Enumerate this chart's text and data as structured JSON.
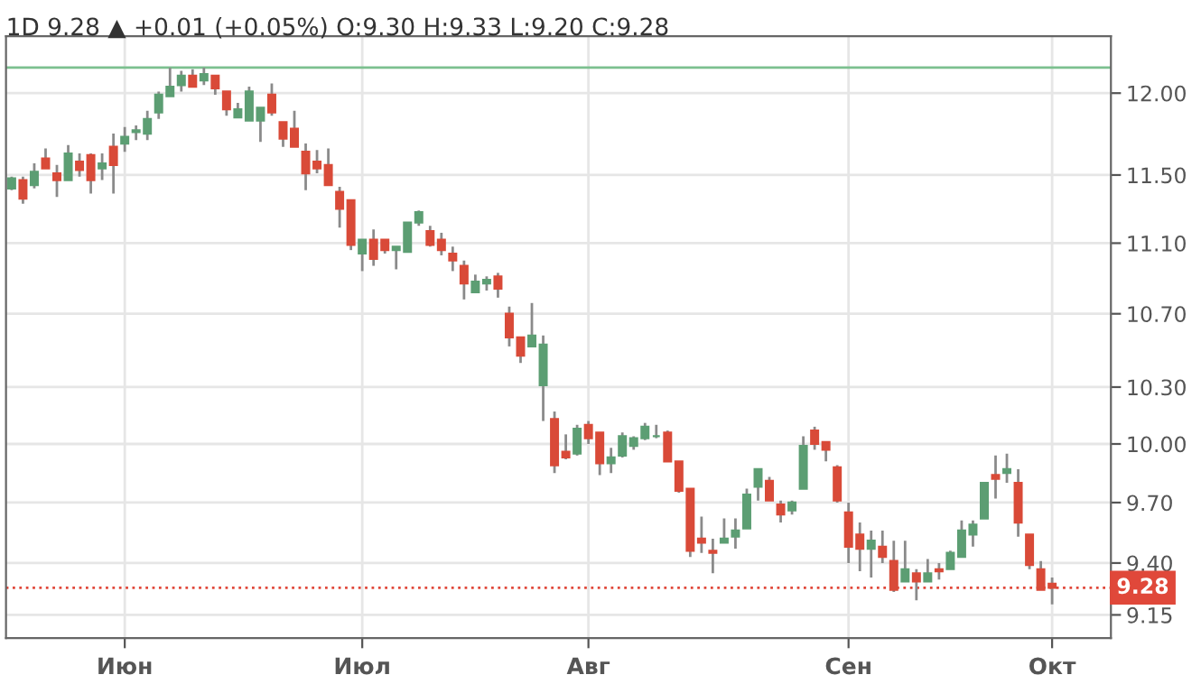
{
  "chart_data": {
    "type": "candlestick",
    "title": "1D 9.28 ▲ +0.01 (+0.05%) O:9.30 H:9.33 L:9.20 C:9.28",
    "categories": [
      null,
      null,
      null,
      null,
      null,
      null,
      null,
      null,
      null,
      null,
      "Июн",
      null,
      null,
      null,
      null,
      null,
      null,
      null,
      null,
      null,
      null,
      null,
      null,
      null,
      null,
      null,
      null,
      null,
      null,
      null,
      null,
      "Июл",
      null,
      null,
      null,
      null,
      null,
      null,
      null,
      null,
      null,
      null,
      null,
      null,
      null,
      null,
      null,
      null,
      null,
      null,
      null,
      "Авг",
      null,
      null,
      null,
      null,
      null,
      null,
      null,
      null,
      null,
      null,
      null,
      null,
      null,
      null,
      null,
      null,
      null,
      null,
      null,
      null,
      null,
      null,
      "Сен",
      null,
      null,
      null,
      null,
      null,
      null,
      null,
      null,
      null,
      null,
      null,
      null,
      null,
      null,
      null,
      null,
      null,
      "Окт"
    ],
    "ohlc": [
      [
        11.42,
        11.49,
        11.41,
        11.48
      ],
      [
        11.47,
        11.49,
        11.33,
        11.36
      ],
      [
        11.44,
        11.57,
        11.42,
        11.52
      ],
      [
        11.6,
        11.66,
        11.54,
        11.54
      ],
      [
        11.51,
        11.56,
        11.37,
        11.47
      ],
      [
        11.47,
        11.68,
        11.47,
        11.63
      ],
      [
        11.58,
        11.63,
        11.49,
        11.53
      ],
      [
        11.62,
        11.63,
        11.39,
        11.47
      ],
      [
        11.54,
        11.63,
        11.47,
        11.57
      ],
      [
        11.67,
        11.75,
        11.39,
        11.56
      ],
      [
        11.69,
        11.79,
        11.64,
        11.73
      ],
      [
        11.76,
        11.8,
        11.71,
        11.77
      ],
      [
        11.75,
        11.89,
        11.71,
        11.84
      ],
      [
        11.88,
        12.01,
        11.84,
        11.99
      ],
      [
        11.98,
        12.16,
        11.98,
        12.04
      ],
      [
        12.05,
        12.14,
        12.01,
        12.11
      ],
      [
        12.11,
        12.15,
        12.04,
        12.04
      ],
      [
        12.08,
        12.16,
        12.05,
        12.12
      ],
      [
        12.11,
        12.11,
        11.99,
        12.03
      ],
      [
        12.01,
        12.01,
        11.86,
        11.9
      ],
      [
        11.85,
        11.94,
        11.85,
        11.9
      ],
      [
        11.83,
        12.04,
        11.83,
        12.01
      ],
      [
        11.83,
        11.91,
        11.7,
        11.91
      ],
      [
        11.99,
        12.06,
        11.86,
        11.88
      ],
      [
        11.82,
        11.82,
        11.67,
        11.72
      ],
      [
        11.78,
        11.89,
        11.67,
        11.67
      ],
      [
        11.64,
        11.69,
        11.41,
        11.51
      ],
      [
        11.58,
        11.65,
        11.51,
        11.54
      ],
      [
        11.56,
        11.66,
        11.44,
        11.44
      ],
      [
        11.4,
        11.43,
        11.19,
        11.3
      ],
      [
        11.35,
        11.35,
        11.06,
        11.09
      ],
      [
        11.04,
        11.12,
        10.94,
        11.12
      ],
      [
        11.12,
        11.18,
        10.97,
        11.01
      ],
      [
        11.12,
        11.12,
        11.04,
        11.06
      ],
      [
        11.06,
        11.08,
        10.95,
        11.08
      ],
      [
        11.05,
        11.22,
        11.05,
        11.22
      ],
      [
        11.22,
        11.29,
        11.2,
        11.28
      ],
      [
        11.17,
        11.2,
        11.08,
        11.09
      ],
      [
        11.12,
        11.16,
        11.03,
        11.06
      ],
      [
        11.04,
        11.08,
        10.94,
        11.0
      ],
      [
        10.97,
        11.0,
        10.78,
        10.87
      ],
      [
        10.82,
        10.92,
        10.82,
        10.88
      ],
      [
        10.87,
        10.91,
        10.83,
        10.89
      ],
      [
        10.91,
        10.93,
        10.79,
        10.84
      ],
      [
        10.7,
        10.74,
        10.52,
        10.57
      ],
      [
        10.57,
        10.57,
        10.43,
        10.47
      ],
      [
        10.52,
        10.76,
        10.52,
        10.58
      ],
      [
        10.31,
        10.58,
        10.12,
        10.53
      ],
      [
        10.13,
        10.17,
        9.85,
        9.89
      ],
      [
        9.96,
        10.05,
        9.92,
        9.93
      ],
      [
        9.95,
        10.1,
        9.94,
        10.08
      ],
      [
        10.1,
        10.12,
        10.0,
        10.03
      ],
      [
        10.06,
        10.06,
        9.84,
        9.9
      ],
      [
        9.9,
        9.98,
        9.85,
        9.93
      ],
      [
        9.94,
        10.06,
        9.93,
        10.04
      ],
      [
        9.99,
        10.04,
        9.97,
        10.03
      ],
      [
        10.03,
        10.11,
        10.02,
        10.09
      ],
      [
        10.04,
        10.1,
        10.03,
        10.04
      ],
      [
        10.06,
        10.07,
        9.91,
        9.91
      ],
      [
        9.91,
        9.91,
        9.75,
        9.76
      ],
      [
        9.77,
        9.77,
        9.43,
        9.46
      ],
      [
        9.52,
        9.63,
        9.45,
        9.5
      ],
      [
        9.46,
        9.52,
        9.35,
        9.45
      ],
      [
        9.5,
        9.62,
        9.5,
        9.52
      ],
      [
        9.53,
        9.62,
        9.47,
        9.56
      ],
      [
        9.57,
        9.77,
        9.57,
        9.74
      ],
      [
        9.78,
        9.87,
        9.71,
        9.87
      ],
      [
        9.81,
        9.83,
        9.71,
        9.71
      ],
      [
        9.69,
        9.71,
        9.6,
        9.64
      ],
      [
        9.66,
        9.71,
        9.64,
        9.7
      ],
      [
        9.77,
        10.04,
        9.77,
        9.99
      ],
      [
        10.07,
        10.09,
        9.97,
        10.0
      ],
      [
        10.01,
        10.01,
        9.91,
        9.97
      ],
      [
        9.88,
        9.89,
        9.7,
        9.71
      ],
      [
        9.65,
        9.7,
        9.4,
        9.48
      ],
      [
        9.54,
        9.6,
        9.36,
        9.47
      ],
      [
        9.47,
        9.56,
        9.33,
        9.51
      ],
      [
        9.48,
        9.56,
        9.4,
        9.43
      ],
      [
        9.41,
        9.51,
        9.26,
        9.27
      ],
      [
        9.31,
        9.51,
        9.31,
        9.37
      ],
      [
        9.35,
        9.37,
        9.22,
        9.31
      ],
      [
        9.31,
        9.42,
        9.31,
        9.35
      ],
      [
        9.37,
        9.4,
        9.32,
        9.36
      ],
      [
        9.37,
        9.46,
        9.37,
        9.45
      ],
      [
        9.43,
        9.61,
        9.43,
        9.56
      ],
      [
        9.54,
        9.61,
        9.48,
        9.59
      ],
      [
        9.62,
        9.8,
        9.62,
        9.8
      ],
      [
        9.84,
        9.94,
        9.72,
        9.82
      ],
      [
        9.85,
        9.95,
        9.8,
        9.87
      ],
      [
        9.8,
        9.87,
        9.53,
        9.6
      ],
      [
        9.54,
        9.54,
        9.37,
        9.39
      ],
      [
        9.37,
        9.41,
        9.27,
        9.27
      ],
      [
        9.3,
        9.33,
        9.2,
        9.28
      ]
    ],
    "colors": [
      "#5c9e73",
      "#d94a38",
      "#5c9e73",
      "#d94a38",
      "#d94a38",
      "#5c9e73",
      "#d94a38",
      "#d94a38",
      "#5c9e73",
      "#d94a38",
      "#5c9e73",
      "#5c9e73",
      "#5c9e73",
      "#5c9e73",
      "#5c9e73",
      "#5c9e73",
      "#d94a38",
      "#5c9e73",
      "#d94a38",
      "#d94a38",
      "#5c9e73",
      "#5c9e73",
      "#5c9e73",
      "#d94a38",
      "#d94a38",
      "#d94a38",
      "#d94a38",
      "#d94a38",
      "#d94a38",
      "#d94a38",
      "#d94a38",
      "#5c9e73",
      "#d94a38",
      "#d94a38",
      "#5c9e73",
      "#5c9e73",
      "#5c9e73",
      "#d94a38",
      "#d94a38",
      "#d94a38",
      "#d94a38",
      "#5c9e73",
      "#5c9e73",
      "#d94a38",
      "#d94a38",
      "#d94a38",
      "#5c9e73",
      "#5c9e73",
      "#d94a38",
      "#d94a38",
      "#5c9e73",
      "#d94a38",
      "#d94a38",
      "#5c9e73",
      "#5c9e73",
      "#5c9e73",
      "#5c9e73",
      "#5c9e73",
      "#d94a38",
      "#d94a38",
      "#d94a38",
      "#d94a38",
      "#d94a38",
      "#5c9e73",
      "#5c9e73",
      "#5c9e73",
      "#5c9e73",
      "#d94a38",
      "#d94a38",
      "#5c9e73",
      "#5c9e73",
      "#d94a38",
      "#d94a38",
      "#d94a38",
      "#d94a38",
      "#d94a38",
      "#5c9e73",
      "#d94a38",
      "#d94a38",
      "#5c9e73",
      "#d94a38",
      "#5c9e73",
      "#d94a38",
      "#5c9e73",
      "#5c9e73",
      "#5c9e73",
      "#5c9e73",
      "#d94a38",
      "#5c9e73",
      "#d94a38",
      "#d94a38",
      "#d94a38",
      "#d94a38"
    ],
    "log": true,
    "ylim": [
      9.04,
      12.36
    ],
    "yticks": [
      {
        "value": 9.15,
        "label": "9.15"
      },
      {
        "value": 9.4,
        "label": "9.40"
      },
      {
        "value": 9.7,
        "label": "9.70"
      },
      {
        "value": 10,
        "label": "10.00"
      },
      {
        "value": 10.3,
        "label": "10.30"
      },
      {
        "value": 10.7,
        "label": "10.70"
      },
      {
        "value": 11.1,
        "label": "11.10"
      },
      {
        "value": 11.5,
        "label": "11.50"
      },
      {
        "value": 12,
        "label": "12.00"
      }
    ],
    "ref_lines": [
      {
        "axis": "y",
        "value": 12.16,
        "color": "#7cc08f",
        "line_style": "solid"
      },
      {
        "axis": "y",
        "value": 9.28,
        "label": "9.28",
        "color": "#e0483a",
        "line_style": "dotted"
      }
    ],
    "grid": true
  }
}
